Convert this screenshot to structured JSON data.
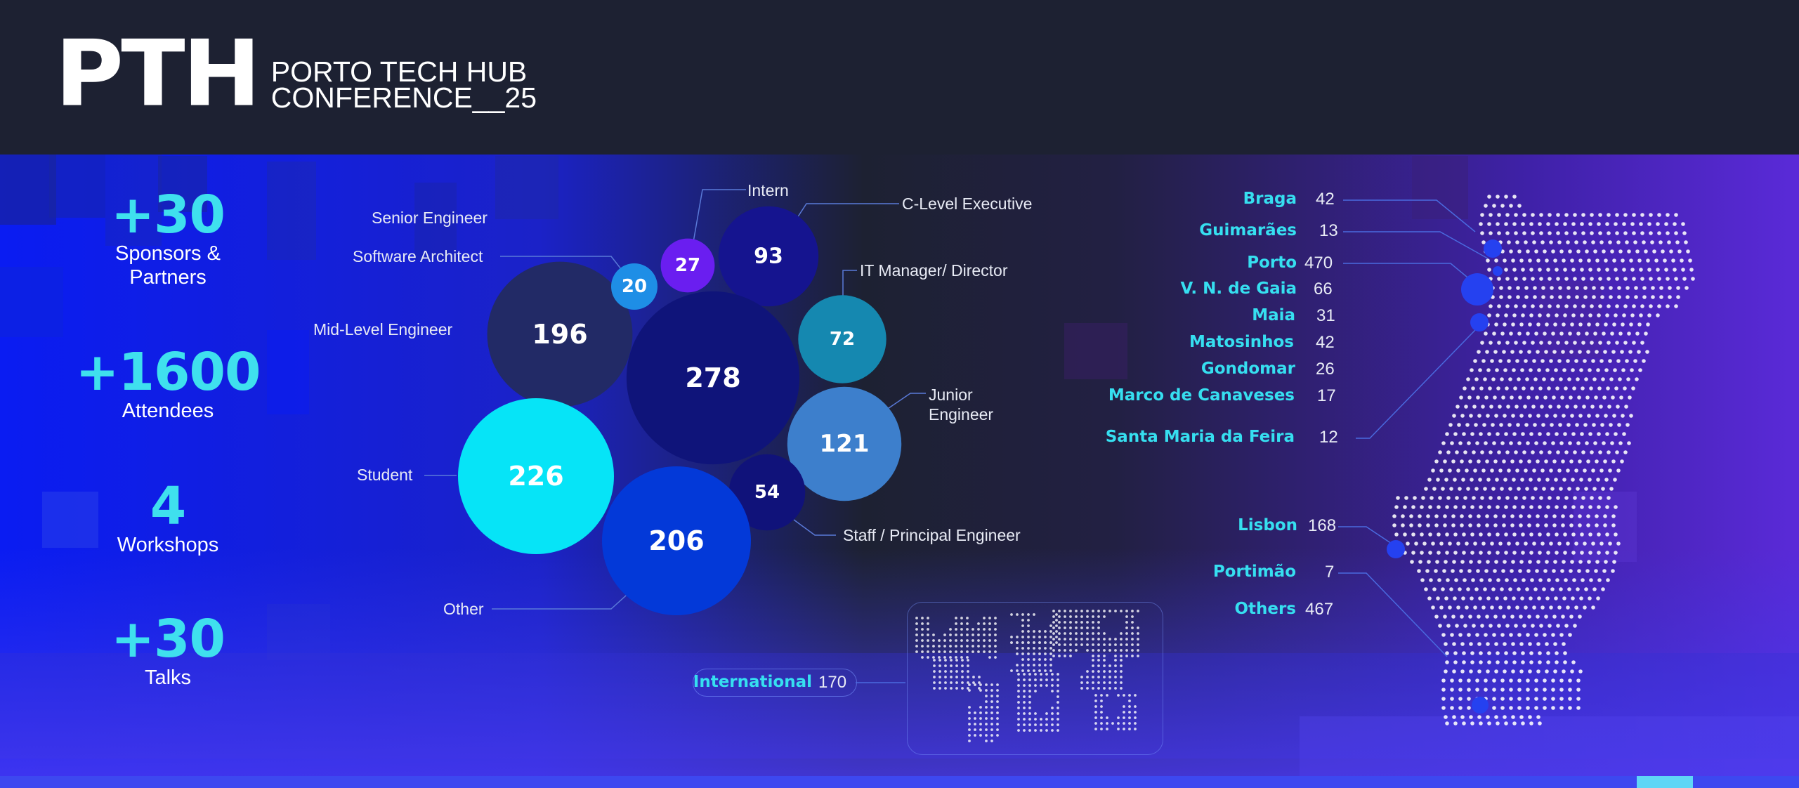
{
  "header": {
    "logo_mark": "PTH",
    "title_line1": "PORTO TECH HUB",
    "title_line2": "CONFERENCE__25"
  },
  "stats": [
    {
      "value": "+30",
      "label_line1": "Sponsors &",
      "label_line2": "Partners"
    },
    {
      "value": "+1600",
      "label_line1": "Attendees",
      "label_line2": ""
    },
    {
      "value": "4",
      "label_line1": "Workshops",
      "label_line2": ""
    },
    {
      "value": "+30",
      "label_line1": "Talks",
      "label_line2": ""
    }
  ],
  "chart_data": [
    {
      "type": "bubble",
      "series": [
        {
          "name": "Intern",
          "value": 27,
          "color": "#6a1ef0"
        },
        {
          "name": "C-Level Executive",
          "value": 93,
          "color": "#15148f"
        },
        {
          "name": "Senior Engineer",
          "value": 196,
          "color": "#222a66"
        },
        {
          "name": "Software Architect",
          "value": 20,
          "color": "#1e8ee6"
        },
        {
          "name": "Mid-Level Engineer",
          "value": 278,
          "color": "#0f147a"
        },
        {
          "name": "IT Manager/ Director",
          "value": 72,
          "color": "#1588b0"
        },
        {
          "name": "Junior Engineer",
          "value": 121,
          "color": "#3d7fcc"
        },
        {
          "name": "Student",
          "value": 226,
          "color": "#06e4f7"
        },
        {
          "name": "Staff / Principal Engineer",
          "value": 54,
          "color": "#10127a"
        },
        {
          "name": "Other",
          "value": 206,
          "color": "#0339d8"
        }
      ]
    },
    {
      "type": "map",
      "regions": [
        {
          "name": "Braga",
          "value": 42
        },
        {
          "name": "Guimarães",
          "value": 13
        },
        {
          "name": "Porto",
          "value": 470
        },
        {
          "name": "V. N. de Gaia",
          "value": 66
        },
        {
          "name": "Maia",
          "value": 31
        },
        {
          "name": "Matosinhos",
          "value": 42
        },
        {
          "name": "Gondomar",
          "value": 26
        },
        {
          "name": "Marco de Canaveses",
          "value": 17
        },
        {
          "name": "Santa Maria da Feira",
          "value": 12
        },
        {
          "name": "Lisbon",
          "value": 168
        },
        {
          "name": "Portimão",
          "value": 7
        },
        {
          "name": "Others",
          "value": 467
        }
      ],
      "international": {
        "name": "International",
        "value": 170
      }
    }
  ],
  "colors": {
    "accent": "#36dff0",
    "background": "#1d2132",
    "blue": "#0b1be6",
    "violet": "#6a3cf0"
  }
}
